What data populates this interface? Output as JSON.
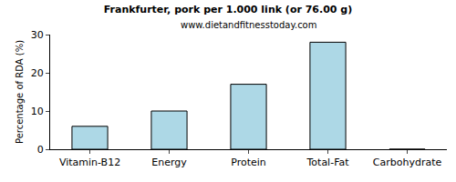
{
  "chart_data": {
    "type": "bar",
    "title": "Frankfurter, pork per 1.000 link (or 76.00 g)",
    "subtitle": "www.dietandfitnesstoday.com",
    "y_label": "Percentage of RDA (%)",
    "categories": [
      "Vitamin-B12",
      "Energy",
      "Protein",
      "Total-Fat",
      "Carbohydrate"
    ],
    "values": [
      6,
      10,
      17,
      28,
      0
    ],
    "color": "#add8e6",
    "ylim": [
      0,
      30
    ],
    "yticks": [
      0,
      10,
      20,
      30
    ],
    "grid": false
  }
}
